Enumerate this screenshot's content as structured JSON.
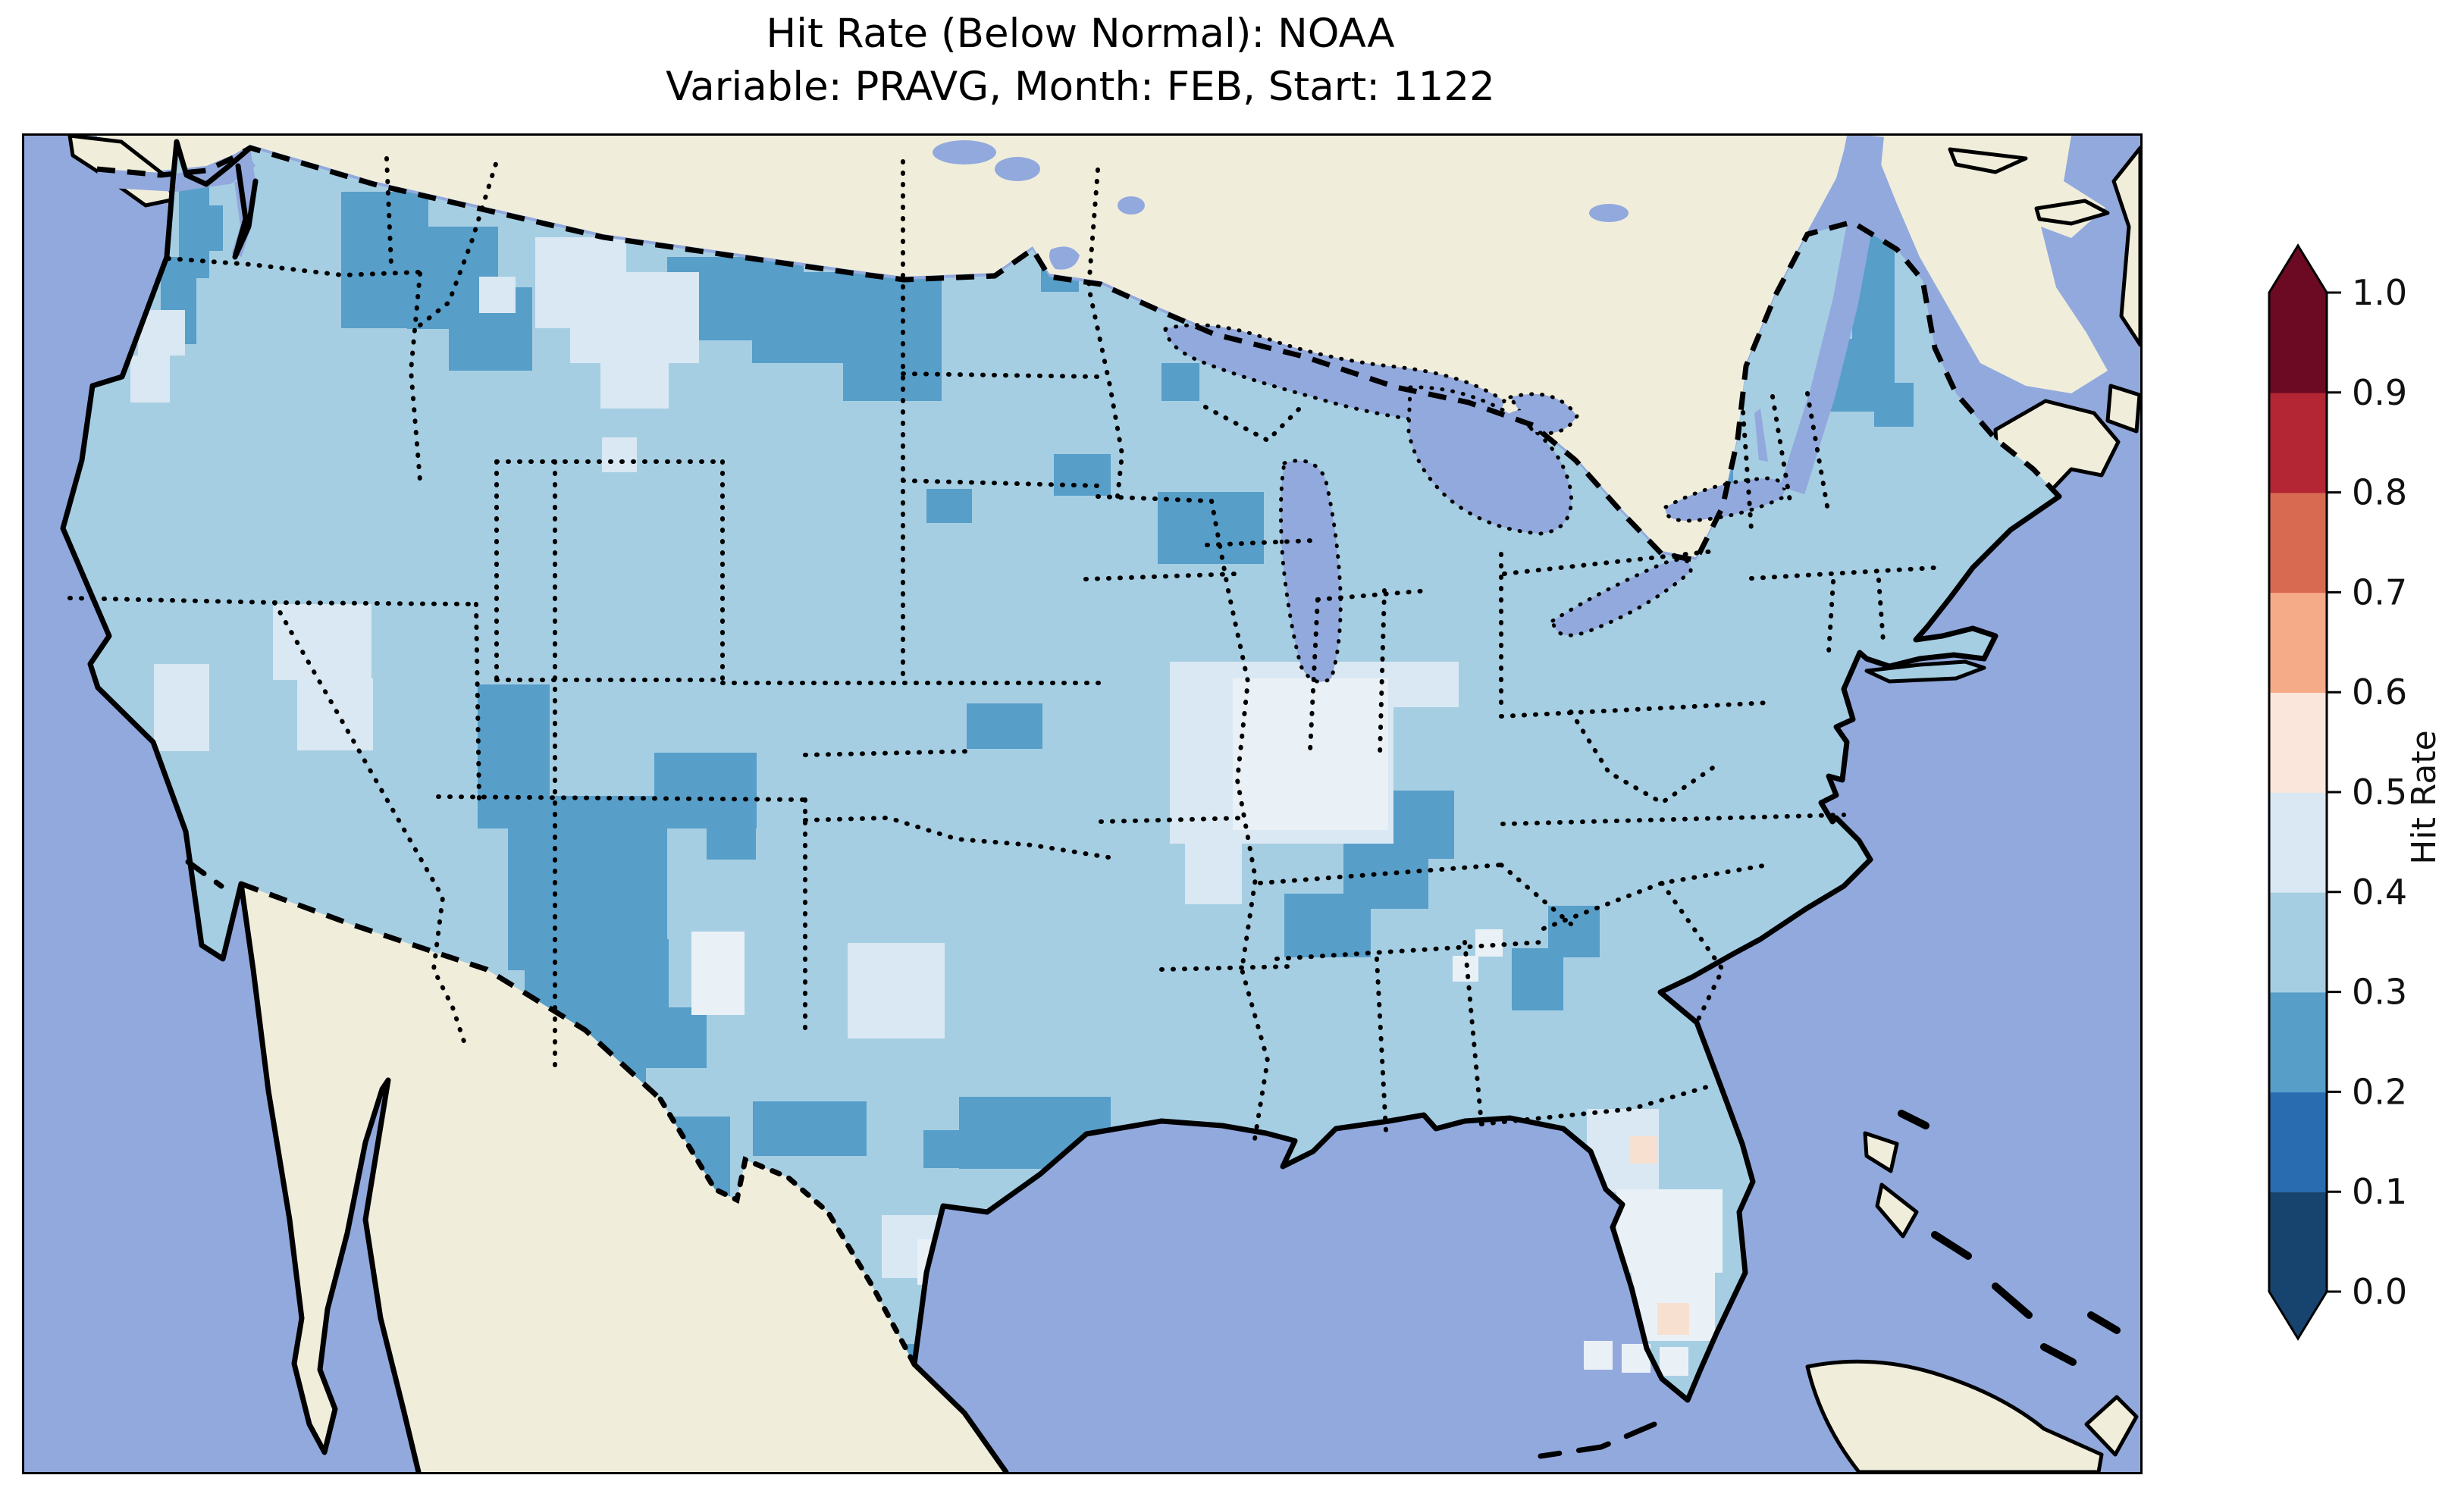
{
  "title": {
    "line1": "Hit Rate (Below Normal): NOAA",
    "line2": "Variable: PRAVG, Month: FEB, Start: 1122"
  },
  "colorbar": {
    "label": "Hit Rate",
    "ticks": [
      "1.0",
      "0.9",
      "0.8",
      "0.7",
      "0.6",
      "0.5",
      "0.4",
      "0.3",
      "0.2",
      "0.1",
      "0.0"
    ],
    "segment_colors_bottom_to_top": [
      "#17446f",
      "#2a6cb0",
      "#579ec9",
      "#a6cee3",
      "#d9e8f2",
      "#fae6da",
      "#f5ab87",
      "#d96a52",
      "#b42633",
      "#6c0a23"
    ],
    "extend_under_color": "#17446f",
    "extend_over_color": "#6c0a23"
  },
  "map": {
    "palette": {
      "ocean": "#92a9dd",
      "land": "#f0eedb",
      "base": "#a6cee3",
      "dark": "#579ec9",
      "pale": "#d9e8f2",
      "white": "#eaf1f6",
      "peach": "#f8e0d0",
      "lake": "#92a9dd",
      "line": "#000000"
    },
    "patches": {
      "dark": [
        [
          204,
          64,
          40,
          124
        ],
        [
          234,
          92,
          28,
          60
        ],
        [
          180,
          160,
          47,
          115
        ],
        [
          418,
          74,
          115,
          180
        ],
        [
          505,
          120,
          120,
          135
        ],
        [
          560,
          200,
          110,
          110
        ],
        [
          848,
          160,
          180,
          110
        ],
        [
          960,
          180,
          250,
          120
        ],
        [
          1080,
          270,
          130,
          80
        ],
        [
          1341,
          151,
          50,
          55
        ],
        [
          1190,
          466,
          60,
          45
        ],
        [
          1358,
          420,
          75,
          55
        ],
        [
          1495,
          470,
          140,
          95
        ],
        [
          1500,
          300,
          50,
          50
        ],
        [
          1243,
          749,
          100,
          60
        ],
        [
          598,
          724,
          95,
          190
        ],
        [
          638,
          871,
          210,
          230
        ],
        [
          660,
          1060,
          190,
          167
        ],
        [
          700,
          1200,
          120,
          60
        ],
        [
          831,
          814,
          135,
          100
        ],
        [
          900,
          890,
          65,
          65
        ],
        [
          790,
          1150,
          110,
          80
        ],
        [
          841,
          1294,
          90,
          115
        ],
        [
          961,
          1274,
          150,
          72
        ],
        [
          1156,
          1594,
          56,
          56
        ],
        [
          1233,
          1268,
          200,
          95
        ],
        [
          1186,
          1312,
          50,
          50
        ],
        [
          1800,
          864,
          86,
          90
        ],
        [
          1740,
          930,
          112,
          90
        ],
        [
          1662,
          1000,
          114,
          84
        ],
        [
          2010,
          1016,
          68,
          68
        ],
        [
          1962,
          1072,
          68,
          82
        ],
        [
          2174,
          387,
          80,
          74
        ],
        [
          2150,
          455,
          50,
          40
        ],
        [
          2411,
          118,
          56,
          210
        ],
        [
          2374,
          268,
          92,
          96
        ],
        [
          2440,
          326,
          52,
          58
        ]
      ],
      "pale": [
        [
          674,
          134,
          120,
          120
        ],
        [
          720,
          180,
          170,
          120
        ],
        [
          760,
          290,
          90,
          70
        ],
        [
          600,
          186,
          48,
          48
        ],
        [
          762,
          398,
          46,
          46
        ],
        [
          150,
          230,
          62,
          60
        ],
        [
          140,
          290,
          52,
          62
        ],
        [
          171,
          697,
          73,
          115
        ],
        [
          328,
          618,
          130,
          100
        ],
        [
          360,
          716,
          100,
          95
        ],
        [
          1511,
          694,
          295,
          240
        ],
        [
          1531,
          934,
          75,
          80
        ],
        [
          1800,
          694,
          92,
          60
        ],
        [
          1086,
          1065,
          128,
          126
        ],
        [
          1131,
          1424,
          123,
          83
        ],
        [
          2061,
          1284,
          95,
          110
        ]
      ],
      "white": [
        [
          1594,
          716,
          205,
          200
        ],
        [
          880,
          1050,
          70,
          110
        ],
        [
          1914,
          1047,
          36,
          36
        ],
        [
          1884,
          1082,
          34,
          34
        ],
        [
          1178,
          1456,
          60,
          60
        ],
        [
          2100,
          1390,
          140,
          110
        ],
        [
          2120,
          1500,
          110,
          90
        ]
      ],
      "peach": [
        [
          2117,
          1320,
          36,
          36
        ],
        [
          2154,
          1540,
          42,
          42
        ]
      ],
      "keys_white": [
        [
          2057,
          1590,
          38,
          38
        ],
        [
          2107,
          1594,
          38,
          38
        ],
        [
          2157,
          1598,
          38,
          38
        ]
      ]
    }
  },
  "chart_data": {
    "type": "heatmap",
    "title": "Hit Rate (Below Normal): NOAA",
    "subtitle": "Variable: PRAVG, Month: FEB, Start: 1122",
    "region": "Contiguous United States (geographic map, gridded ~0.5° cells)",
    "variable": "PRAVG",
    "month": "FEB",
    "start": "1122",
    "source_label": "NOAA",
    "colorbar": {
      "label": "Hit Rate",
      "orientation": "vertical",
      "position": "right",
      "ticks": [
        0.0,
        0.1,
        0.2,
        0.3,
        0.4,
        0.5,
        0.6,
        0.7,
        0.8,
        0.9,
        1.0
      ],
      "bin_edges": [
        0.0,
        0.1,
        0.2,
        0.3,
        0.4,
        0.5,
        0.6,
        0.7,
        0.8,
        0.9,
        1.0
      ],
      "bin_colors_low_to_high": [
        "#17446f",
        "#2a6cb0",
        "#579ec9",
        "#a6cee3",
        "#d9e8f2",
        "#fae6da",
        "#f5ab87",
        "#d96a52",
        "#b42633",
        "#6c0a23"
      ],
      "extend": "both",
      "colormap": "RdBu_r (discrete, 10 bins)"
    },
    "value_summary": {
      "dominant_bin": "0.3-0.4 (light blue) covers most of CONUS",
      "bin_0.2_0.3_dark_blue_regions": [
        "NE Washington / N Idaho",
        "N Montana - NW North Dakota",
        "Utah / W Colorado / E Arizona / NW New Mexico (largest patch)",
        "Big Bend & S Texas",
        "C Texas",
        "E Kansas cell",
        "C Wisconsin",
        "W Kentucky - Tennessee diagonal band",
        "NW Georgia diagonal",
        "Adirondacks NY",
        "N Maine / NE Vermont strip",
        "NW Washington coast"
      ],
      "bin_0.4_0.5_pale_regions": [
        "C Montana",
        "NW Nevada / NE California",
        "Missouri - Illinois (large, near-white core)",
        "Texas panhandle / W Oklahoma",
        "S Florida peninsula and Keys",
        "Corpus Christi coast",
        "SW Washington & SW Oregon coast cells",
        "SE New Mexico near-white cells",
        "W Tennessee small cells"
      ],
      "bin_0.5_0.6_peach_cells": [
        "two isolated cells in S Florida"
      ],
      "no_data_shown_for": [
        "Canada",
        "Mexico",
        "oceans",
        "Great Lakes"
      ]
    },
    "map_pixel_patches_note": "map.patches arrays give [x,y,w,h] rectangles in map-panel pixel coordinates (2791x1763) for each colour bin read off the figure"
  }
}
